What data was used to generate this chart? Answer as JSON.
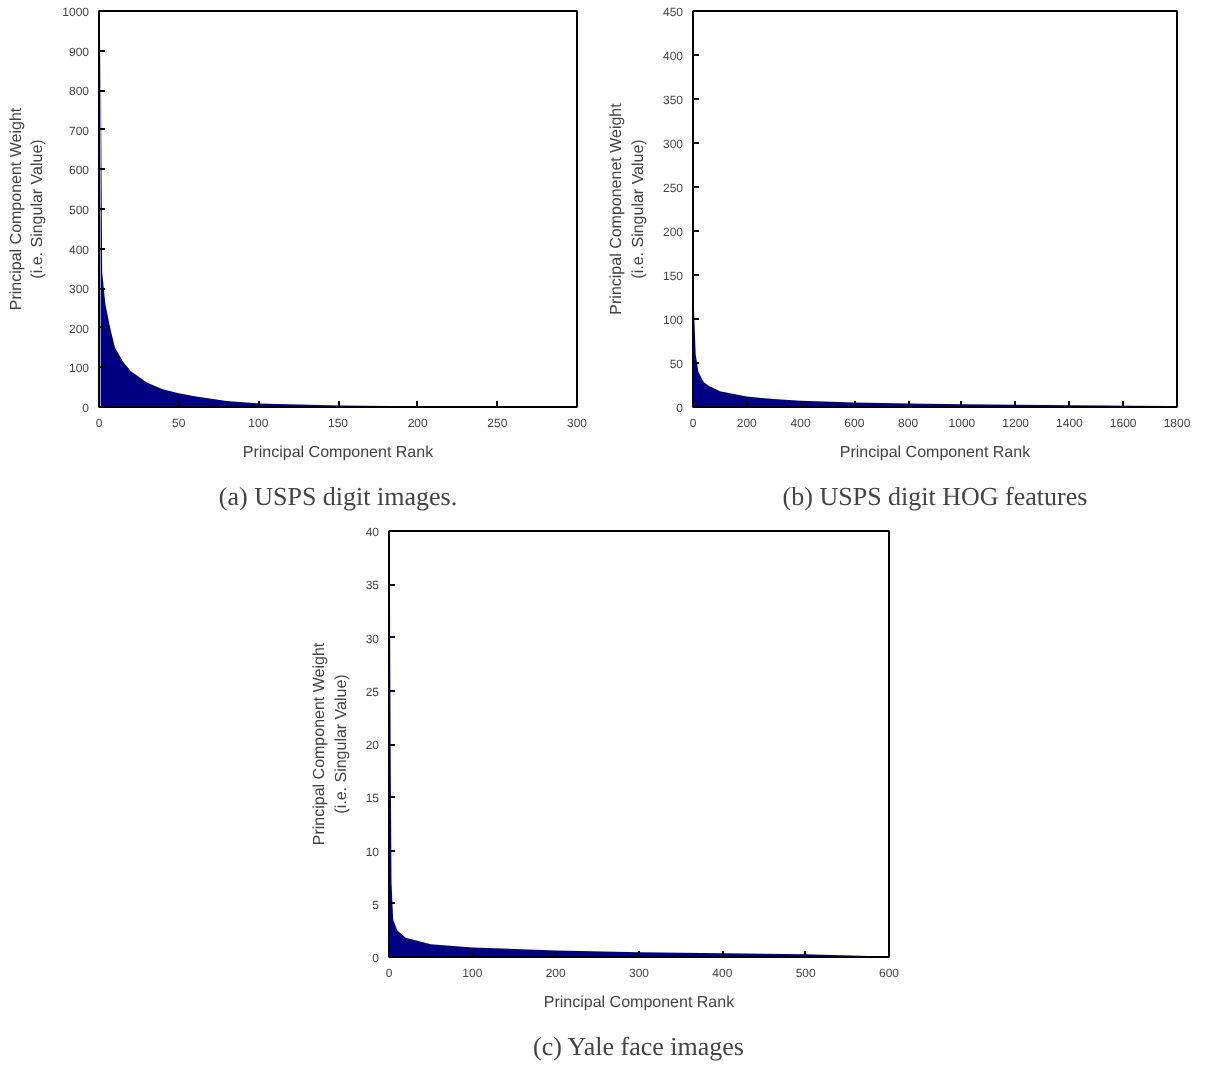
{
  "chart_data": [
    {
      "type": "area",
      "title": "(a) USPS digit images.",
      "xlabel": "Principal Component Rank",
      "ylabel": "Principal Component Weight\n(i.e. Singular Value)",
      "color": "#000080",
      "grid": false,
      "x": [
        1,
        2,
        3,
        4,
        5,
        7,
        10,
        15,
        20,
        30,
        40,
        50,
        60,
        80,
        100,
        150,
        200,
        256
      ],
      "values": [
        940,
        340,
        300,
        260,
        240,
        200,
        150,
        115,
        90,
        62,
        45,
        35,
        27,
        15,
        9,
        4,
        2,
        1
      ],
      "xlim": [
        0,
        300
      ],
      "ylim": [
        0,
        1000
      ],
      "xticks": [
        0,
        50,
        100,
        150,
        200,
        250,
        300
      ],
      "yticks": [
        0,
        100,
        200,
        300,
        400,
        500,
        600,
        700,
        800,
        900,
        1000
      ]
    },
    {
      "type": "area",
      "title": "(b) USPS digit HOG features",
      "xlabel": "Principal Component Rank",
      "ylabel": "Principal Componenet Weight\n(i.e. Singular Value)",
      "color": "#000080",
      "grid": false,
      "x": [
        1,
        2,
        5,
        10,
        20,
        40,
        60,
        100,
        200,
        300,
        400,
        600,
        800,
        1000,
        1200,
        1400,
        1764
      ],
      "values": [
        440,
        130,
        100,
        60,
        40,
        28,
        24,
        18,
        12,
        9,
        7,
        5,
        4,
        3,
        2.5,
        2,
        1
      ],
      "xlim": [
        0,
        1800
      ],
      "ylim": [
        0,
        450
      ],
      "xticks": [
        0,
        200,
        400,
        600,
        800,
        1000,
        1200,
        1400,
        1600,
        1800
      ],
      "yticks": [
        0,
        50,
        100,
        150,
        200,
        250,
        300,
        350,
        400,
        450
      ]
    },
    {
      "type": "area",
      "title": "(c) Yale face images",
      "xlabel": "Principal Component Rank",
      "ylabel": "Principal Component Weight\n(i.e. Singular Value)",
      "color": "#000080",
      "grid": false,
      "x": [
        1,
        2,
        3,
        5,
        10,
        20,
        50,
        100,
        200,
        300,
        400,
        500,
        575
      ],
      "values": [
        37,
        19,
        7,
        3.5,
        2.5,
        1.8,
        1.2,
        0.9,
        0.6,
        0.45,
        0.35,
        0.25,
        0.1
      ],
      "xlim": [
        0,
        600
      ],
      "ylim": [
        0,
        40
      ],
      "xticks": [
        0,
        100,
        200,
        300,
        400,
        500,
        600
      ],
      "yticks": [
        0,
        5,
        10,
        15,
        20,
        25,
        30,
        35,
        40
      ]
    }
  ]
}
